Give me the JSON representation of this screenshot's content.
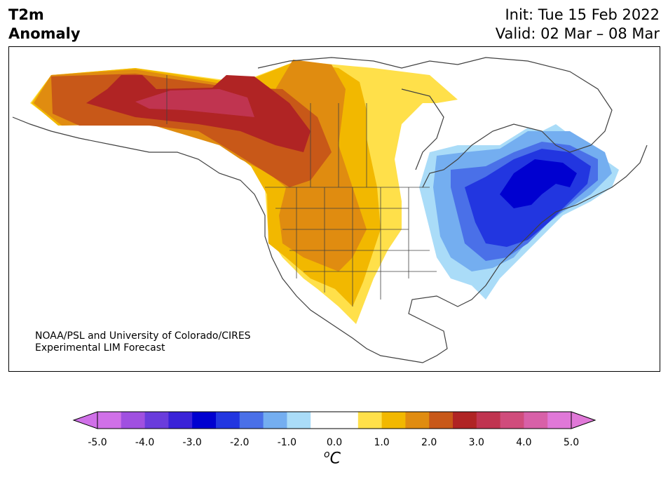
{
  "title": {
    "line1": "T2m",
    "line2": "Anomaly"
  },
  "info": {
    "init": "Init: Tue 15 Feb 2022",
    "valid": "Valid: 02 Mar – 08 Mar"
  },
  "credit": {
    "line1": "NOAA/PSL and University of Colorado/CIRES",
    "line2": "Experimental LIM Forecast"
  },
  "colorbar": {
    "unit_base": "C",
    "unit_sup": "o",
    "ticks": [
      "-5.0",
      "-4.0",
      "-3.0",
      "-2.0",
      "-1.0",
      "0.0",
      "1.0",
      "2.0",
      "3.0",
      "4.0",
      "5.0"
    ],
    "colors": [
      "#d070e8",
      "#a050e0",
      "#6a3cdc",
      "#3a22d8",
      "#0000d0",
      "#2236e0",
      "#4a70e8",
      "#74aef0",
      "#aadcf8",
      "#ffffff",
      "#ffffff",
      "#ffe04a",
      "#f2b800",
      "#e08c10",
      "#c85818",
      "#b02424",
      "#c03450",
      "#d04c7c",
      "#d860a8",
      "#e078d8"
    ],
    "extend_low": "#d070e8",
    "extend_high": "#e078d8"
  }
}
